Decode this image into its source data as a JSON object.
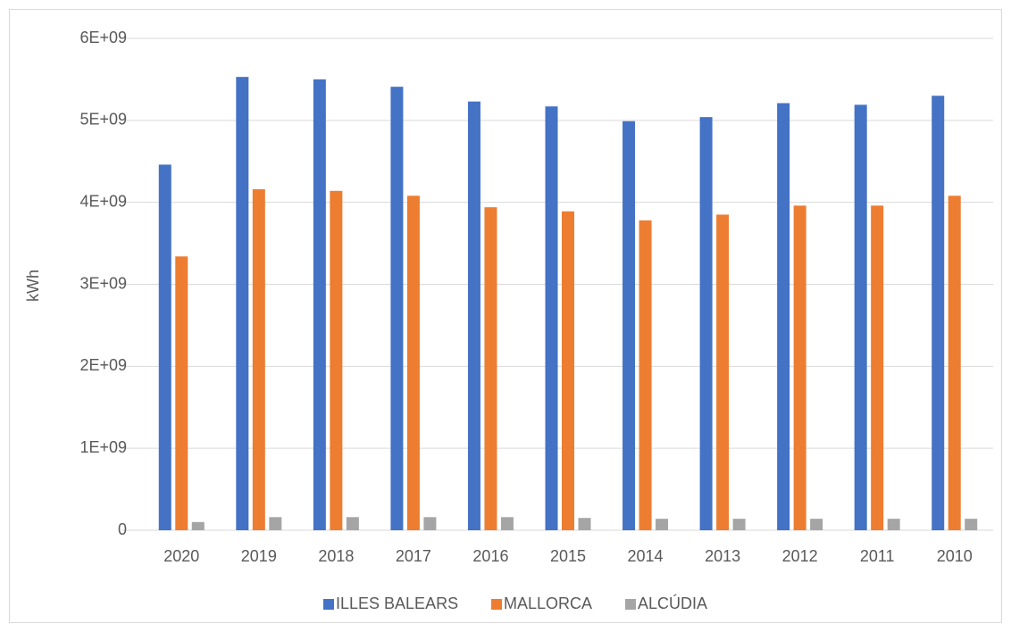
{
  "chart_data": {
    "type": "bar",
    "ylabel": "kWh",
    "categories": [
      "2020",
      "2019",
      "2018",
      "2017",
      "2016",
      "2015",
      "2014",
      "2013",
      "2012",
      "2011",
      "2010"
    ],
    "series": [
      {
        "name": "ILLES BALEARS",
        "color": "#4472c4",
        "values": [
          4460000000,
          5530000000,
          5500000000,
          5410000000,
          5230000000,
          5170000000,
          4990000000,
          5040000000,
          5210000000,
          5190000000,
          5300000000
        ]
      },
      {
        "name": "MALLORCA",
        "color": "#ed7d31",
        "values": [
          3340000000,
          4160000000,
          4140000000,
          4080000000,
          3940000000,
          3890000000,
          3780000000,
          3850000000,
          3960000000,
          3960000000,
          4080000000
        ]
      },
      {
        "name": "ALCÚDIA",
        "color": "#a5a5a5",
        "values": [
          100000000,
          160000000,
          160000000,
          160000000,
          160000000,
          150000000,
          140000000,
          140000000,
          140000000,
          140000000,
          140000000
        ]
      }
    ],
    "ylim": [
      0,
      6000000000
    ],
    "yticks": [
      0,
      {
        "value": 1000000000,
        "label": "1E+09"
      },
      {
        "value": 2000000000,
        "label": "2E+09"
      },
      {
        "value": 3000000000,
        "label": "3E+09"
      },
      {
        "value": 4000000000,
        "label": "4E+09"
      },
      {
        "value": 5000000000,
        "label": "5E+09"
      },
      {
        "value": 6000000000,
        "label": "6E+09"
      }
    ],
    "grid": true,
    "legend": "bottom"
  }
}
